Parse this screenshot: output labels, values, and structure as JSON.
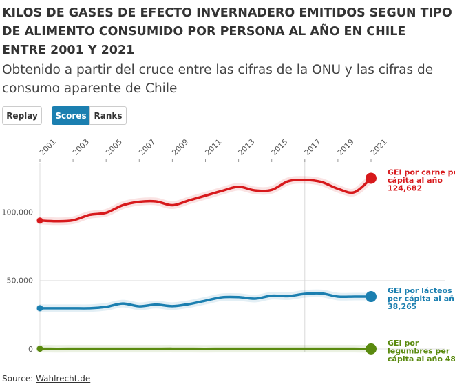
{
  "header": {
    "title": "KILOS DE GASES DE EFECTO INVERNADERO EMITIDOS SEGUN TIPO DE ALIMENTO CONSUMIDO POR PERSONA AL AÑO EN CHILE ENTRE 2001 Y 2021",
    "subtitle": "Obtenido a partir del cruce entre las cifras de la ONU y las cifras de consumo aparente de Chile"
  },
  "controls": {
    "replay_label": "Replay",
    "scores_label": "Scores",
    "ranks_label": "Ranks",
    "active": "Scores",
    "active_color": "#1b7fb0"
  },
  "footer": {
    "source_prefix": "Source: ",
    "source_link": "Wahlrecht.de"
  },
  "chart_data": {
    "type": "line",
    "x": [
      2001,
      2002,
      2003,
      2004,
      2005,
      2006,
      2007,
      2008,
      2009,
      2010,
      2011,
      2012,
      2013,
      2014,
      2015,
      2016,
      2017,
      2018,
      2019,
      2020,
      2021
    ],
    "x_ticks": [
      "2001",
      "2003",
      "2005",
      "2007",
      "2009",
      "2011",
      "2013",
      "2015",
      "2017",
      "2019",
      "2021"
    ],
    "y_ticks": [
      0,
      50000,
      100000
    ],
    "y_tick_labels": [
      "0",
      "50,000",
      "100,000"
    ],
    "ylim": [
      0,
      135000
    ],
    "grid": true,
    "highlight_x": 2017,
    "series": [
      {
        "name": "GEI por carne per cápita al año",
        "color": "#d7191c",
        "values": [
          93800,
          93300,
          94000,
          98000,
          99500,
          105000,
          107500,
          107800,
          105000,
          108500,
          112000,
          115500,
          118500,
          115800,
          116200,
          122500,
          123500,
          122000,
          117000,
          114500,
          124682
        ],
        "end_label_lines": [
          "GEI por carne per",
          "cápita al año"
        ],
        "end_value": "124,682"
      },
      {
        "name": "GEI por lácteos per cápita al año",
        "color": "#1b7fb0",
        "values": [
          29800,
          29800,
          29800,
          29800,
          30800,
          33200,
          31200,
          32400,
          31300,
          32800,
          35300,
          37800,
          37900,
          36800,
          38900,
          38600,
          40300,
          40600,
          38300,
          38300,
          38265
        ],
        "end_label_lines": [
          "GEI por lácteos",
          "per cápita al añ"
        ],
        "end_value": "38,265"
      },
      {
        "name": "GEI por legumbres per cápita al año",
        "color": "#5a8a0f",
        "values": [
          200,
          150,
          180,
          220,
          200,
          160,
          180,
          200,
          220,
          180,
          150,
          200,
          220,
          200,
          180,
          200,
          220,
          200,
          180,
          200,
          48
        ],
        "end_label_lines": [
          "GEI por",
          "legumbres per",
          "cápita al año 48"
        ],
        "end_value": ""
      }
    ]
  }
}
